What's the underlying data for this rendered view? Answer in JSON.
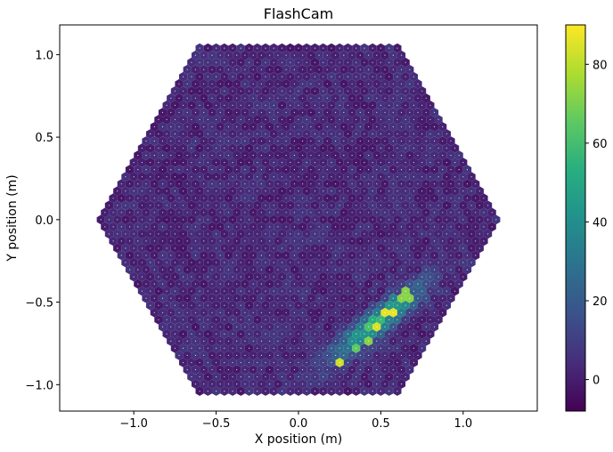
{
  "chart_data": {
    "type": "heatmap",
    "title": "FlashCam",
    "xlabel": "X position (m)",
    "ylabel": "Y position (m)",
    "xlim": [
      -1.45,
      1.45
    ],
    "ylim": [
      -1.16,
      1.18
    ],
    "xticks": [
      {
        "v": -1.0,
        "label": "−1.0"
      },
      {
        "v": -0.5,
        "label": "−0.5"
      },
      {
        "v": 0.0,
        "label": "0.0"
      },
      {
        "v": 0.5,
        "label": "0.5"
      },
      {
        "v": 1.0,
        "label": "1.0"
      }
    ],
    "yticks": [
      {
        "v": -1.0,
        "label": "−1.0"
      },
      {
        "v": -0.5,
        "label": "−0.5"
      },
      {
        "v": 0.0,
        "label": "0.0"
      },
      {
        "v": 0.5,
        "label": "0.5"
      },
      {
        "v": 1.0,
        "label": "1.0"
      }
    ],
    "grid": false,
    "colormap": "viridis",
    "colorbar": {
      "range": [
        -8,
        90
      ],
      "ticks": [
        {
          "v": 0,
          "label": "0"
        },
        {
          "v": 20,
          "label": "20"
        },
        {
          "v": 40,
          "label": "40"
        },
        {
          "v": 60,
          "label": "60"
        },
        {
          "v": 80,
          "label": "80"
        }
      ]
    },
    "camera": {
      "pixel_pitch_m": 0.05,
      "corner_radius_m": 1.2,
      "background_level": 2,
      "image_region": {
        "description": "elongated signal ellipse",
        "center": [
          0.48,
          -0.62
        ],
        "length_m": 0.62,
        "width_m": 0.1,
        "angle_deg": 39,
        "peak": 88
      },
      "bright_pixels": [
        {
          "x": 0.57,
          "y": -0.55,
          "v": 87
        },
        {
          "x": 0.52,
          "y": -0.57,
          "v": 86
        },
        {
          "x": 0.47,
          "y": -0.65,
          "v": 84
        },
        {
          "x": 0.27,
          "y": -0.87,
          "v": 83
        },
        {
          "x": 0.65,
          "y": -0.46,
          "v": 72
        },
        {
          "x": 0.41,
          "y": -0.74,
          "v": 72
        },
        {
          "x": 0.36,
          "y": -0.79,
          "v": 65
        }
      ]
    }
  }
}
